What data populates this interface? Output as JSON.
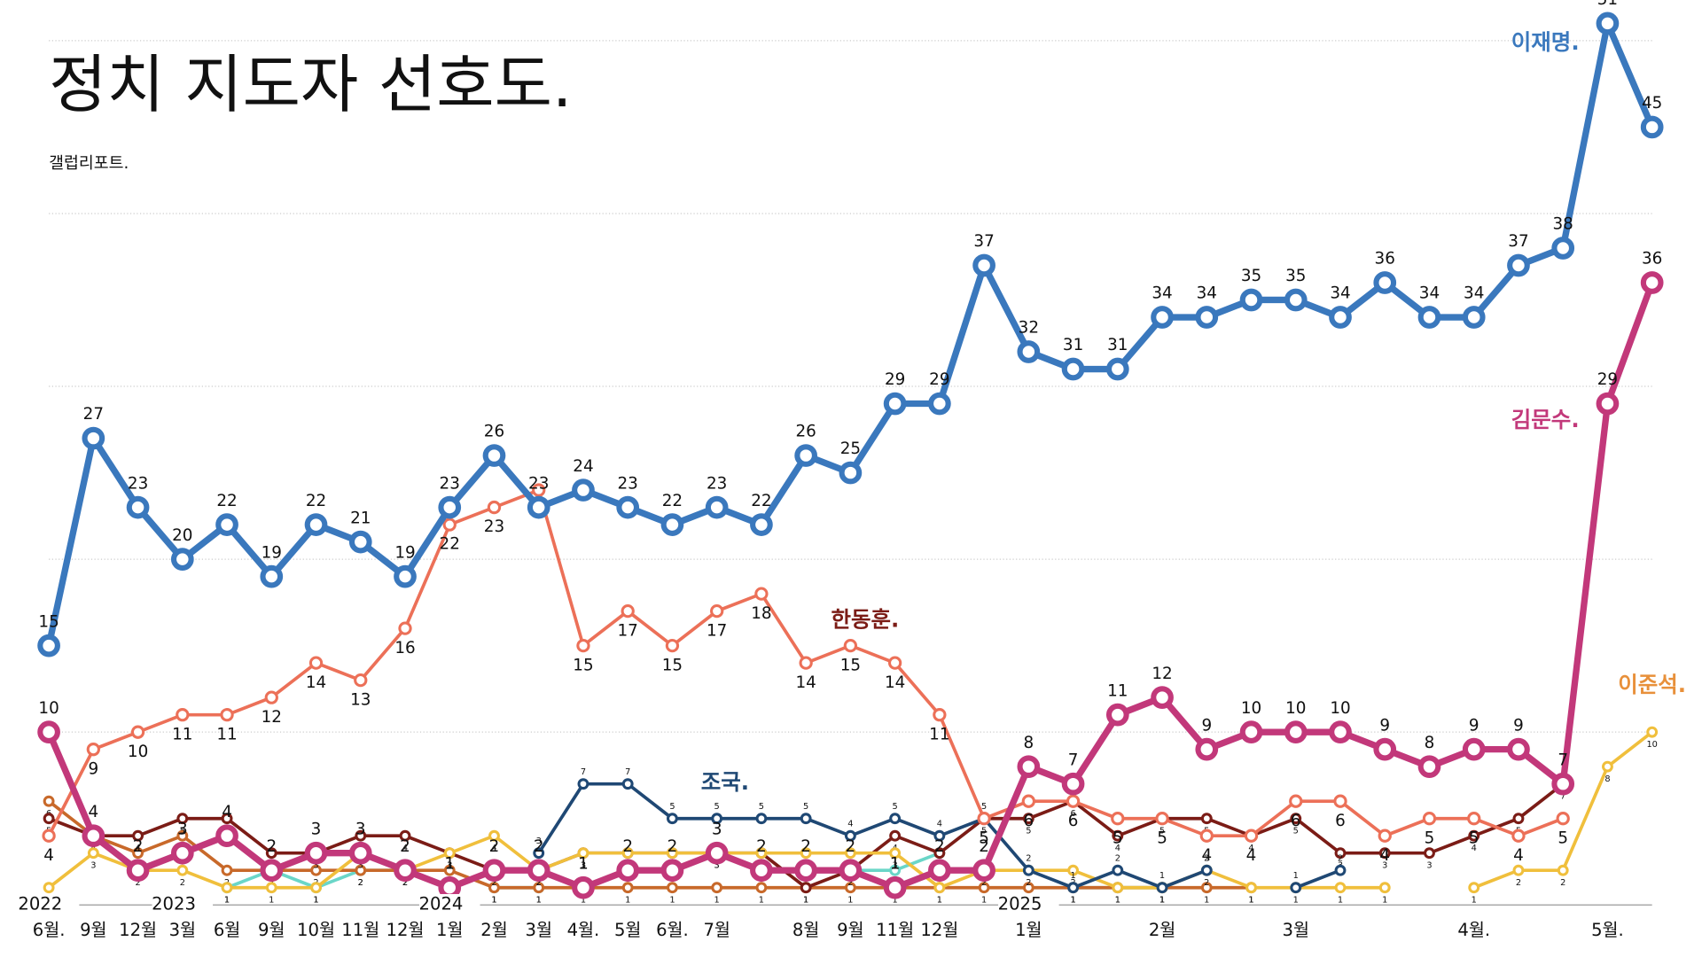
{
  "chart_data": {
    "type": "line",
    "title": "정치 지도자 선호도.",
    "subtitle": "갤럽리포트.",
    "categories": [
      "6월.",
      "9월",
      "12월",
      "3월",
      "6월",
      "9월",
      "10월",
      "11월",
      "12월",
      "1월",
      "2월",
      "3월",
      "4월.",
      "5월",
      "6월.",
      "7월",
      null,
      "8월",
      "9월",
      "11월",
      "12월",
      null,
      "1월",
      null,
      null,
      "2월",
      null,
      null,
      "3월",
      null,
      null,
      null,
      "4월.",
      null,
      null,
      "5월.",
      null
    ],
    "years": [
      {
        "label": "2022",
        "at": 0
      },
      {
        "label": "2023",
        "at": 3
      },
      {
        "label": "2024",
        "at": 9
      },
      {
        "label": "2025",
        "at": 22
      }
    ],
    "ylim": [
      0,
      52
    ],
    "yticks": [
      10,
      20,
      30,
      40,
      50
    ],
    "grid": true,
    "series": [
      {
        "name": "이재명.",
        "color": "#3a78bd",
        "width": 6,
        "label": "above",
        "values": [
          15,
          27,
          23,
          20,
          22,
          19,
          22,
          21,
          19,
          23,
          26,
          23,
          24,
          23,
          22,
          23,
          22,
          26,
          25,
          29,
          29,
          37,
          32,
          31,
          31,
          34,
          34,
          35,
          35,
          34,
          36,
          34,
          34,
          37,
          38,
          51,
          45
        ]
      },
      {
        "name": "한동훈.",
        "color": "#ec7058",
        "label_color": "#7b1c16",
        "width": 3,
        "label": "below",
        "values": [
          4,
          9,
          10,
          11,
          11,
          12,
          14,
          13,
          16,
          22,
          23,
          24,
          15,
          17,
          15,
          17,
          18,
          14,
          15,
          14,
          11,
          5,
          6,
          6,
          5,
          5,
          4,
          4,
          6,
          6,
          4,
          5,
          5,
          4,
          5,
          null,
          null
        ]
      },
      {
        "name": "김문수.",
        "color": "#c2387a",
        "width": 6,
        "label": "above",
        "values": [
          10,
          4,
          2,
          3,
          4,
          2,
          3,
          3,
          2,
          1,
          2,
          2,
          1,
          2,
          2,
          3,
          2,
          2,
          2,
          1,
          2,
          2,
          8,
          7,
          11,
          12,
          9,
          10,
          10,
          10,
          9,
          8,
          9,
          9,
          7,
          29,
          36
        ]
      },
      {
        "name": "조국.",
        "color": "#1f4874",
        "width": 3,
        "label": "above",
        "values": [
          null,
          null,
          null,
          null,
          null,
          null,
          null,
          null,
          null,
          null,
          null,
          3,
          7,
          7,
          5,
          5,
          5,
          5,
          4,
          5,
          4,
          5,
          2,
          1,
          2,
          1,
          2,
          null,
          1,
          2,
          null,
          null,
          null,
          null,
          null,
          null,
          null
        ]
      },
      {
        "name": "이준석.",
        "color": "#f0bf3c",
        "label_color": "#e8903a",
        "width": 3,
        "label": "below",
        "values": [
          1,
          3,
          2,
          2,
          1,
          1,
          1,
          3,
          2,
          3,
          4,
          2,
          3,
          3,
          3,
          3,
          3,
          3,
          3,
          3,
          1,
          2,
          2,
          2,
          1,
          1,
          2,
          1,
          1,
          1,
          1,
          null,
          1,
          2,
          2,
          8,
          10
        ]
      },
      {
        "color": "#7b1c16",
        "width": 3,
        "label": "below",
        "values": [
          5,
          4,
          4,
          5,
          5,
          3,
          3,
          4,
          4,
          3,
          2,
          2,
          3,
          3,
          3,
          3,
          3,
          1,
          2,
          4,
          3,
          5,
          5,
          6,
          4,
          5,
          5,
          4,
          5,
          3,
          3,
          3,
          4,
          5,
          7,
          null,
          null
        ]
      },
      {
        "color": "#c8692a",
        "width": 3,
        "label": "below",
        "values": [
          6,
          4,
          3,
          4,
          2,
          2,
          2,
          2,
          2,
          2,
          1,
          1,
          1,
          1,
          1,
          1,
          1,
          1,
          1,
          1,
          1,
          1,
          1,
          1,
          1,
          1,
          1,
          1,
          null,
          null,
          null,
          null,
          null,
          null,
          null,
          null,
          null
        ]
      },
      {
        "color": "#6ad6c8",
        "width": 3,
        "label": "below",
        "values": [
          null,
          null,
          null,
          null,
          1,
          2,
          1,
          2,
          2,
          null,
          1,
          1,
          null,
          null,
          null,
          null,
          null,
          null,
          2,
          2,
          3,
          null,
          null,
          1,
          1,
          1,
          null,
          null,
          null,
          null,
          null,
          null,
          null,
          null,
          null,
          null,
          null
        ]
      }
    ]
  }
}
